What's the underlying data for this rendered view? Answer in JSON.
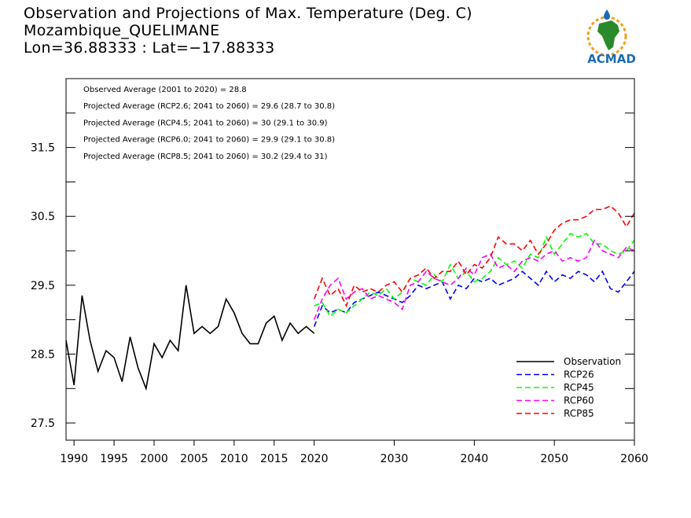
{
  "header": {
    "title_line1": "Observation and Projections of Max. Temperature (Deg. C)",
    "title_line2": "Mozambique_QUELIMANE",
    "title_line3": "Lon=36.88333 : Lat=−17.88333"
  },
  "logo": {
    "text": "ACMAD",
    "icon": "africa-map-logo",
    "brand_blue": "#1a6bb5",
    "brand_green": "#2a8a2a",
    "brand_orange": "#f0a020"
  },
  "chart_data": {
    "type": "line",
    "xlim": [
      1989,
      2060
    ],
    "ylim": [
      27.25,
      32.5
    ],
    "x_ticks": [
      1990,
      1995,
      2000,
      2005,
      2010,
      2015,
      2020,
      2030,
      2040,
      2050,
      2060
    ],
    "y_ticks": [
      27.5,
      28.5,
      29.5,
      30.5,
      31.5
    ],
    "y_tick_labels": [
      "27.5",
      "28.5",
      "29.5",
      "30.5",
      "31.5"
    ],
    "grid": false,
    "legend_position": "bottom-right",
    "stats": [
      "Observed Average (2001 to 2020) = 28.8",
      "Projected Average (RCP2.6; 2041 to 2060) = 29.6 (28.7 to 30.8)",
      "Projected Average (RCP4.5; 2041 to 2060) = 30 (29.1 to 30.9)",
      "Projected Average (RCP6.0; 2041 to 2060) = 29.9 (29.1 to 30.8)",
      "Projected Average (RCP8.5; 2041 to 2060) = 30.2 (29.4 to 31)"
    ],
    "series": [
      {
        "name": "Observation",
        "color": "#000000",
        "dashed": false,
        "x": [
          1989,
          1990,
          1991,
          1992,
          1993,
          1994,
          1995,
          1996,
          1997,
          1998,
          1999,
          2000,
          2001,
          2002,
          2003,
          2004,
          2005,
          2006,
          2007,
          2008,
          2009,
          2010,
          2011,
          2012,
          2013,
          2014,
          2015,
          2016,
          2017,
          2018,
          2019,
          2020
        ],
        "y": [
          28.7,
          28.05,
          29.35,
          28.7,
          28.25,
          28.55,
          28.45,
          28.1,
          28.75,
          28.3,
          28.0,
          28.65,
          28.45,
          28.7,
          28.55,
          29.5,
          28.8,
          28.9,
          28.8,
          28.9,
          29.3,
          29.1,
          28.8,
          28.65,
          28.65,
          28.95,
          29.05,
          28.7,
          28.95,
          28.8,
          28.9,
          28.8
        ]
      },
      {
        "name": "RCP26",
        "color": "#0000ff",
        "dashed": true,
        "x": [
          2020,
          2021,
          2022,
          2023,
          2024,
          2025,
          2026,
          2027,
          2028,
          2029,
          2030,
          2031,
          2032,
          2033,
          2034,
          2035,
          2036,
          2037,
          2038,
          2039,
          2040,
          2041,
          2042,
          2043,
          2044,
          2045,
          2046,
          2047,
          2048,
          2049,
          2050,
          2051,
          2052,
          2053,
          2054,
          2055,
          2056,
          2057,
          2058,
          2059,
          2060
        ],
        "y": [
          28.9,
          29.2,
          29.1,
          29.15,
          29.1,
          29.25,
          29.3,
          29.35,
          29.4,
          29.35,
          29.3,
          29.25,
          29.35,
          29.5,
          29.45,
          29.5,
          29.55,
          29.3,
          29.5,
          29.45,
          29.6,
          29.55,
          29.6,
          29.5,
          29.55,
          29.6,
          29.7,
          29.6,
          29.5,
          29.7,
          29.55,
          29.65,
          29.6,
          29.7,
          29.65,
          29.55,
          29.7,
          29.45,
          29.4,
          29.55,
          29.7
        ]
      },
      {
        "name": "RCP45",
        "color": "#00ff00",
        "dashed": true,
        "x": [
          2020,
          2021,
          2022,
          2023,
          2024,
          2025,
          2026,
          2027,
          2028,
          2029,
          2030,
          2031,
          2032,
          2033,
          2034,
          2035,
          2036,
          2037,
          2038,
          2039,
          2040,
          2041,
          2042,
          2043,
          2044,
          2045,
          2046,
          2047,
          2048,
          2049,
          2050,
          2051,
          2052,
          2053,
          2054,
          2055,
          2056,
          2057,
          2058,
          2059,
          2060
        ],
        "y": [
          29.2,
          29.25,
          29.05,
          29.15,
          29.1,
          29.2,
          29.3,
          29.4,
          29.35,
          29.45,
          29.3,
          29.4,
          29.6,
          29.55,
          29.5,
          29.65,
          29.55,
          29.8,
          29.6,
          29.7,
          29.55,
          29.6,
          29.7,
          29.9,
          29.8,
          29.85,
          29.75,
          29.95,
          29.9,
          30.2,
          29.95,
          30.1,
          30.25,
          30.2,
          30.25,
          30.1,
          30.1,
          30.0,
          29.95,
          30.0,
          30.15
        ]
      },
      {
        "name": "RCP60",
        "color": "#ff00ff",
        "dashed": true,
        "x": [
          2020,
          2021,
          2022,
          2023,
          2024,
          2025,
          2026,
          2027,
          2028,
          2029,
          2030,
          2031,
          2032,
          2033,
          2034,
          2035,
          2036,
          2037,
          2038,
          2039,
          2040,
          2041,
          2042,
          2043,
          2044,
          2045,
          2046,
          2047,
          2048,
          2049,
          2050,
          2051,
          2052,
          2053,
          2054,
          2055,
          2056,
          2057,
          2058,
          2059,
          2060
        ],
        "y": [
          29.0,
          29.3,
          29.5,
          29.6,
          29.3,
          29.4,
          29.45,
          29.3,
          29.35,
          29.3,
          29.25,
          29.15,
          29.5,
          29.55,
          29.7,
          29.6,
          29.55,
          29.5,
          29.6,
          29.75,
          29.65,
          29.9,
          29.95,
          29.75,
          29.8,
          29.7,
          29.85,
          29.9,
          29.85,
          29.95,
          30.0,
          29.85,
          29.9,
          29.85,
          29.9,
          30.15,
          30.0,
          29.95,
          29.9,
          30.05,
          30.0
        ]
      },
      {
        "name": "RCP85",
        "color": "#ff0000",
        "dashed": true,
        "x": [
          2020,
          2021,
          2022,
          2023,
          2024,
          2025,
          2026,
          2027,
          2028,
          2029,
          2030,
          2031,
          2032,
          2033,
          2034,
          2035,
          2036,
          2037,
          2038,
          2039,
          2040,
          2041,
          2042,
          2043,
          2044,
          2045,
          2046,
          2047,
          2048,
          2049,
          2050,
          2051,
          2052,
          2053,
          2054,
          2055,
          2056,
          2057,
          2058,
          2059,
          2060
        ],
        "y": [
          29.3,
          29.6,
          29.35,
          29.45,
          29.2,
          29.5,
          29.4,
          29.45,
          29.4,
          29.5,
          29.55,
          29.4,
          29.6,
          29.65,
          29.75,
          29.6,
          29.7,
          29.7,
          29.85,
          29.65,
          29.8,
          29.75,
          29.9,
          30.2,
          30.1,
          30.1,
          30.0,
          30.15,
          29.95,
          30.1,
          30.3,
          30.4,
          30.45,
          30.45,
          30.5,
          30.6,
          30.6,
          30.65,
          30.55,
          30.35,
          30.55
        ]
      }
    ]
  }
}
